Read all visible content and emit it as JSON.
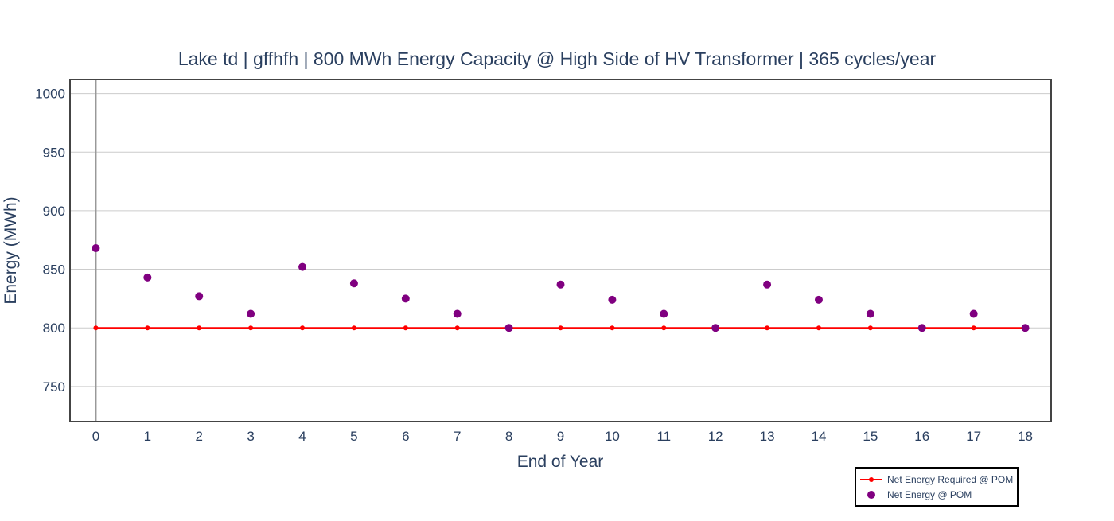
{
  "chart_data": {
    "type": "line",
    "title": "Lake td | gffhfh | 800 MWh Energy Capacity @ High Side of HV Transformer | 365 cycles/year",
    "xlabel": "End of Year",
    "ylabel": "Energy (MWh)",
    "x": [
      0,
      1,
      2,
      3,
      4,
      5,
      6,
      7,
      8,
      9,
      10,
      11,
      12,
      13,
      14,
      15,
      16,
      17,
      18
    ],
    "xlim": [
      -0.5,
      18.5
    ],
    "ylim": [
      720,
      1012
    ],
    "yticks": [
      750,
      800,
      850,
      900,
      950,
      1000
    ],
    "grid": true,
    "legend_position": "bottom-right",
    "series": [
      {
        "name": "Net Energy Required @ POM",
        "mode": "lines+markers",
        "color": "#ff0000",
        "values": [
          800,
          800,
          800,
          800,
          800,
          800,
          800,
          800,
          800,
          800,
          800,
          800,
          800,
          800,
          800,
          800,
          800,
          800,
          800
        ]
      },
      {
        "name": "Net Energy @ POM",
        "mode": "markers",
        "color": "#800080",
        "values": [
          868,
          843,
          827,
          812,
          852,
          838,
          825,
          812,
          800,
          837,
          824,
          812,
          800,
          837,
          824,
          812,
          800,
          812,
          800
        ]
      }
    ]
  }
}
